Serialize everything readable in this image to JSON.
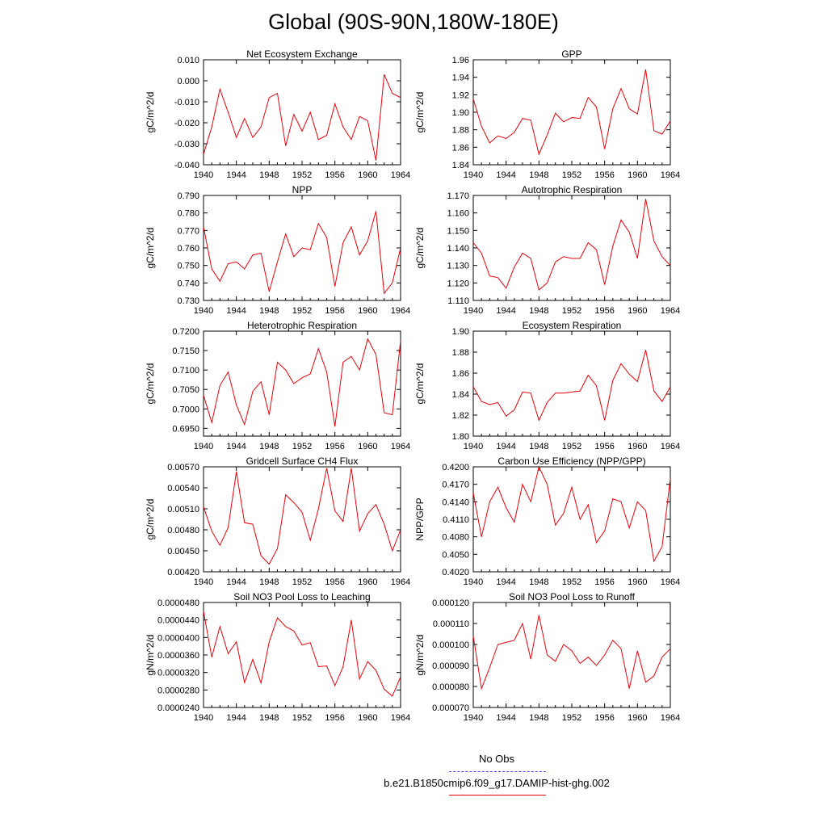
{
  "title": "Global (90S-90N,180W-180E)",
  "legend": {
    "obs_label": "No Obs",
    "obs_color": "#3a3aff",
    "model_label": "b.e21.B1850cmip6.f09_g17.DAMIP-hist-ghg.002",
    "model_color": "#e8000a"
  },
  "chart_data": [
    {
      "type": "line",
      "title": "Net Ecosystem Exchange",
      "ylabel": "gC/m^2/d",
      "xlim": [
        1940,
        1964
      ],
      "ylim": [
        -0.04,
        0.01
      ],
      "xticks": [
        "1940",
        "1944",
        "1948",
        "1952",
        "1956",
        "1960",
        "1964"
      ],
      "yticks": [
        "-0.040",
        "-0.030",
        "-0.020",
        "-0.010",
        "0.000",
        "0.010"
      ],
      "x": [
        1940,
        1941,
        1942,
        1943,
        1944,
        1945,
        1946,
        1947,
        1948,
        1949,
        1950,
        1951,
        1952,
        1953,
        1954,
        1955,
        1956,
        1957,
        1958,
        1959,
        1960,
        1961,
        1962,
        1963,
        1964
      ],
      "values": [
        -0.035,
        -0.022,
        -0.004,
        -0.015,
        -0.027,
        -0.018,
        -0.027,
        -0.022,
        -0.008,
        -0.006,
        -0.031,
        -0.016,
        -0.024,
        -0.015,
        -0.028,
        -0.026,
        -0.011,
        -0.022,
        -0.028,
        -0.017,
        -0.019,
        -0.038,
        0.003,
        -0.006,
        -0.008
      ]
    },
    {
      "type": "line",
      "title": "GPP",
      "ylabel": "gC/m^2/d",
      "xlim": [
        1940,
        1964
      ],
      "ylim": [
        1.84,
        1.96
      ],
      "xticks": [
        "1940",
        "1944",
        "1948",
        "1952",
        "1956",
        "1960",
        "1964"
      ],
      "yticks": [
        "1.84",
        "1.86",
        "1.88",
        "1.90",
        "1.92",
        "1.94",
        "1.96"
      ],
      "x": [
        1940,
        1941,
        1942,
        1943,
        1944,
        1945,
        1946,
        1947,
        1948,
        1949,
        1950,
        1951,
        1952,
        1953,
        1954,
        1955,
        1956,
        1957,
        1958,
        1959,
        1960,
        1961,
        1962,
        1963,
        1964
      ],
      "values": [
        1.915,
        1.884,
        1.865,
        1.873,
        1.87,
        1.877,
        1.893,
        1.891,
        1.852,
        1.874,
        1.899,
        1.889,
        1.894,
        1.893,
        1.917,
        1.906,
        1.858,
        1.904,
        1.927,
        1.904,
        1.898,
        1.949,
        1.879,
        1.875,
        1.89
      ]
    },
    {
      "type": "line",
      "title": "NPP",
      "ylabel": "gC/m^2/d",
      "xlim": [
        1940,
        1964
      ],
      "ylim": [
        0.73,
        0.79
      ],
      "xticks": [
        "1940",
        "1944",
        "1948",
        "1952",
        "1956",
        "1960",
        "1964"
      ],
      "yticks": [
        "0.730",
        "0.740",
        "0.750",
        "0.760",
        "0.770",
        "0.780",
        "0.790"
      ],
      "x": [
        1940,
        1941,
        1942,
        1943,
        1944,
        1945,
        1946,
        1947,
        1948,
        1949,
        1950,
        1951,
        1952,
        1953,
        1954,
        1955,
        1956,
        1957,
        1958,
        1959,
        1960,
        1961,
        1962,
        1963,
        1964
      ],
      "values": [
        0.772,
        0.748,
        0.741,
        0.751,
        0.752,
        0.748,
        0.756,
        0.757,
        0.735,
        0.752,
        0.768,
        0.755,
        0.76,
        0.759,
        0.774,
        0.766,
        0.738,
        0.763,
        0.772,
        0.756,
        0.764,
        0.781,
        0.734,
        0.74,
        0.76
      ]
    },
    {
      "type": "line",
      "title": "Autotrophic Respiration",
      "ylabel": "gC/m^2/d",
      "xlim": [
        1940,
        1964
      ],
      "ylim": [
        1.11,
        1.17
      ],
      "xticks": [
        "1940",
        "1944",
        "1948",
        "1952",
        "1956",
        "1960",
        "1964"
      ],
      "yticks": [
        "1.110",
        "1.120",
        "1.130",
        "1.140",
        "1.150",
        "1.160",
        "1.170"
      ],
      "x": [
        1940,
        1941,
        1942,
        1943,
        1944,
        1945,
        1946,
        1947,
        1948,
        1949,
        1950,
        1951,
        1952,
        1953,
        1954,
        1955,
        1956,
        1957,
        1958,
        1959,
        1960,
        1961,
        1962,
        1963,
        1964
      ],
      "values": [
        1.143,
        1.137,
        1.124,
        1.123,
        1.117,
        1.129,
        1.137,
        1.134,
        1.116,
        1.12,
        1.132,
        1.135,
        1.134,
        1.134,
        1.143,
        1.139,
        1.119,
        1.141,
        1.156,
        1.149,
        1.134,
        1.168,
        1.144,
        1.135,
        1.13
      ]
    },
    {
      "type": "line",
      "title": "Heterotrophic Respiration",
      "ylabel": "gC/m^2/d",
      "xlim": [
        1940,
        1964
      ],
      "ylim": [
        0.693,
        0.72
      ],
      "xticks": [
        "1940",
        "1944",
        "1948",
        "1952",
        "1956",
        "1960",
        "1964"
      ],
      "yticks": [
        "0.6950",
        "0.7000",
        "0.7050",
        "0.7100",
        "0.7150",
        "0.7200"
      ],
      "x": [
        1940,
        1941,
        1942,
        1943,
        1944,
        1945,
        1946,
        1947,
        1948,
        1949,
        1950,
        1951,
        1952,
        1953,
        1954,
        1955,
        1956,
        1957,
        1958,
        1959,
        1960,
        1961,
        1962,
        1963,
        1964
      ],
      "values": [
        0.7035,
        0.6965,
        0.706,
        0.7095,
        0.701,
        0.696,
        0.7045,
        0.707,
        0.6985,
        0.712,
        0.71,
        0.7065,
        0.708,
        0.709,
        0.7155,
        0.7095,
        0.6955,
        0.712,
        0.7135,
        0.71,
        0.718,
        0.714,
        0.699,
        0.6985,
        0.7175
      ]
    },
    {
      "type": "line",
      "title": "Ecosystem Respiration",
      "ylabel": "gC/m^2/d",
      "xlim": [
        1940,
        1964
      ],
      "ylim": [
        1.8,
        1.9
      ],
      "xticks": [
        "1940",
        "1944",
        "1948",
        "1952",
        "1956",
        "1960",
        "1964"
      ],
      "yticks": [
        "1.80",
        "1.82",
        "1.84",
        "1.86",
        "1.88",
        "1.90"
      ],
      "x": [
        1940,
        1941,
        1942,
        1943,
        1944,
        1945,
        1946,
        1947,
        1948,
        1949,
        1950,
        1951,
        1952,
        1953,
        1954,
        1955,
        1956,
        1957,
        1958,
        1959,
        1960,
        1961,
        1962,
        1963,
        1964
      ],
      "values": [
        1.847,
        1.833,
        1.83,
        1.832,
        1.819,
        1.825,
        1.842,
        1.841,
        1.815,
        1.832,
        1.841,
        1.841,
        1.842,
        1.843,
        1.858,
        1.848,
        1.815,
        1.853,
        1.869,
        1.859,
        1.852,
        1.882,
        1.843,
        1.833,
        1.847
      ]
    },
    {
      "type": "line",
      "title": "Gridcell Surface CH4 Flux",
      "ylabel": "gC/m^2/d",
      "xlim": [
        1940,
        1964
      ],
      "ylim": [
        0.0042,
        0.0057
      ],
      "xticks": [
        "1940",
        "1944",
        "1948",
        "1952",
        "1956",
        "1960",
        "1964"
      ],
      "yticks": [
        "0.00420",
        "0.00450",
        "0.00480",
        "0.00510",
        "0.00540",
        "0.00570"
      ],
      "x": [
        1940,
        1941,
        1942,
        1943,
        1944,
        1945,
        1946,
        1947,
        1948,
        1949,
        1950,
        1951,
        1952,
        1953,
        1954,
        1955,
        1956,
        1957,
        1958,
        1959,
        1960,
        1961,
        1962,
        1963,
        1964
      ],
      "values": [
        0.00513,
        0.00478,
        0.00458,
        0.00483,
        0.00563,
        0.0049,
        0.00488,
        0.00443,
        0.00431,
        0.00453,
        0.0053,
        0.00519,
        0.00505,
        0.00465,
        0.0051,
        0.00568,
        0.00507,
        0.00492,
        0.00568,
        0.00478,
        0.00503,
        0.00516,
        0.00488,
        0.0045,
        0.0048
      ]
    },
    {
      "type": "line",
      "title": "Carbon Use Efficiency (NPP/GPP)",
      "ylabel": "NPP/GPP",
      "xlim": [
        1940,
        1964
      ],
      "ylim": [
        0.402,
        0.42
      ],
      "xticks": [
        "1940",
        "1944",
        "1948",
        "1952",
        "1956",
        "1960",
        "1964"
      ],
      "yticks": [
        "0.4020",
        "0.4050",
        "0.4080",
        "0.4110",
        "0.4140",
        "0.4170",
        "0.4200"
      ],
      "x": [
        1940,
        1941,
        1942,
        1943,
        1944,
        1945,
        1946,
        1947,
        1948,
        1949,
        1950,
        1951,
        1952,
        1953,
        1954,
        1955,
        1956,
        1957,
        1958,
        1959,
        1960,
        1961,
        1962,
        1963,
        1964
      ],
      "values": [
        0.4155,
        0.408,
        0.414,
        0.4165,
        0.413,
        0.4105,
        0.417,
        0.414,
        0.42,
        0.417,
        0.41,
        0.412,
        0.4165,
        0.411,
        0.4135,
        0.407,
        0.409,
        0.4145,
        0.414,
        0.4095,
        0.414,
        0.4125,
        0.4038,
        0.4063,
        0.418
      ]
    },
    {
      "type": "line",
      "title": "Soil NO3 Pool Loss to Leaching",
      "ylabel": "gN/m^2/d",
      "xlim": [
        1940,
        1964
      ],
      "ylim": [
        2.4e-05,
        4.8e-05
      ],
      "xticks": [
        "1940",
        "1944",
        "1948",
        "1952",
        "1956",
        "1960",
        "1964"
      ],
      "yticks": [
        "0.0000240",
        "0.0000280",
        "0.0000320",
        "0.0000360",
        "0.0000400",
        "0.0000440",
        "0.0000480"
      ],
      "x": [
        1940,
        1941,
        1942,
        1943,
        1944,
        1945,
        1946,
        1947,
        1948,
        1949,
        1950,
        1951,
        1952,
        1953,
        1954,
        1955,
        1956,
        1957,
        1958,
        1959,
        1960,
        1961,
        1962,
        1963,
        1964
      ],
      "values": [
        4.6e-05,
        3.55e-05,
        4.25e-05,
        3.63e-05,
        3.9e-05,
        2.97e-05,
        3.5e-05,
        2.96e-05,
        3.9e-05,
        4.45e-05,
        4.25e-05,
        4.15e-05,
        3.83e-05,
        3.88e-05,
        3.33e-05,
        3.35e-05,
        2.9e-05,
        3.33e-05,
        4.4e-05,
        3.05e-05,
        3.45e-05,
        3.25e-05,
        2.82e-05,
        2.66e-05,
        3.1e-05
      ]
    },
    {
      "type": "line",
      "title": "Soil NO3 Pool Loss to Runoff",
      "ylabel": "gN/m^2/d",
      "xlim": [
        1940,
        1964
      ],
      "ylim": [
        7e-05,
        0.00012
      ],
      "xticks": [
        "1940",
        "1944",
        "1948",
        "1952",
        "1956",
        "1960",
        "1964"
      ],
      "yticks": [
        "0.000070",
        "0.000080",
        "0.000090",
        "0.000100",
        "0.000110",
        "0.000120"
      ],
      "x": [
        1940,
        1941,
        1942,
        1943,
        1944,
        1945,
        1946,
        1947,
        1948,
        1949,
        1950,
        1951,
        1952,
        1953,
        1954,
        1955,
        1956,
        1957,
        1958,
        1959,
        1960,
        1961,
        1962,
        1963,
        1964
      ],
      "values": [
        0.000104,
        7.9e-05,
        8.9e-05,
        0.0001,
        0.000101,
        0.000102,
        0.00011,
        9.3e-05,
        0.000114,
        9.5e-05,
        9.2e-05,
        0.0001,
        9.7e-05,
        9.1e-05,
        9.4e-05,
        9e-05,
        9.5e-05,
        0.000102,
        9.8e-05,
        7.9e-05,
        9.7e-05,
        8.2e-05,
        8.5e-05,
        9.4e-05,
        9.8e-05
      ]
    }
  ]
}
